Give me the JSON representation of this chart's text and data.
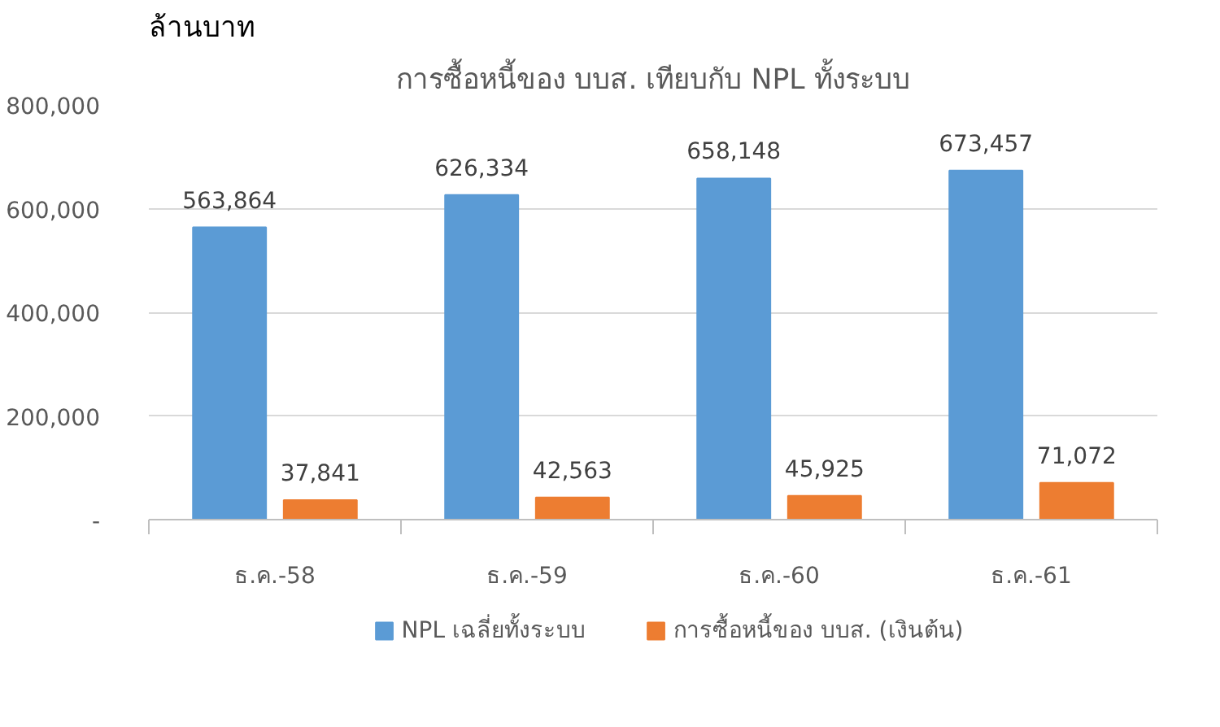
{
  "chart_data": {
    "type": "bar",
    "title": "การซื้อหนี้ของ บบส. เทียบกับ NPL ทั้งระบบ",
    "ylabel": "ล้านบาท",
    "categories": [
      "ธ.ค.-58",
      "ธ.ค.-59",
      "ธ.ค.-60",
      "ธ.ค.-61"
    ],
    "series": [
      {
        "name": "NPL เฉลี่ยทั้งระบบ",
        "color": "#5b9bd5",
        "values": [
          563864,
          626334,
          658148,
          673457
        ],
        "value_labels": [
          "563,864",
          "626,334",
          "658,148",
          "673,457"
        ]
      },
      {
        "name": "การซื้อหนี้ของ บบส. (เงินต้น)",
        "color": "#ed7d31",
        "values": [
          37841,
          42563,
          45925,
          71072
        ],
        "value_labels": [
          "37,841",
          "42,563",
          "45,925",
          "71,072"
        ]
      }
    ],
    "ylim": [
      0,
      800000
    ],
    "yticks": [
      {
        "value": 0,
        "label": "-"
      },
      {
        "value": 200000,
        "label": "200,000"
      },
      {
        "value": 400000,
        "label": "400,000"
      },
      {
        "value": 600000,
        "label": "600,000"
      },
      {
        "value": 800000,
        "label": "800,000"
      }
    ],
    "grid": "y",
    "legend": "bottom"
  }
}
